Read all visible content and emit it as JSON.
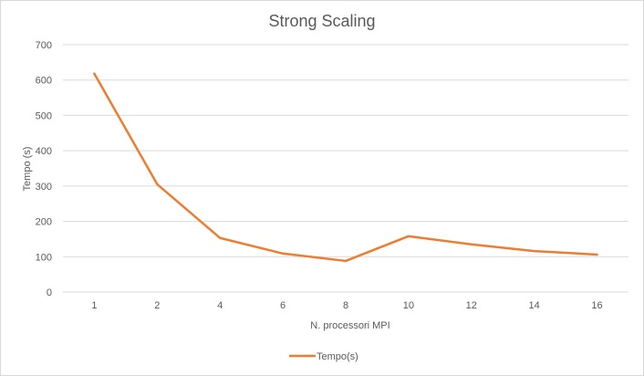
{
  "chart_data": {
    "type": "line",
    "title": "Strong Scaling",
    "xlabel": "N. processori MPI",
    "ylabel": "Tempo (s)",
    "categories": [
      "1",
      "2",
      "4",
      "6",
      "8",
      "10",
      "12",
      "14",
      "16"
    ],
    "series": [
      {
        "name": "Tempo(s)",
        "color": "#ed7d31",
        "values": [
          618,
          305,
          153,
          109,
          88,
          158,
          135,
          116,
          106
        ]
      }
    ],
    "ylim": [
      0,
      700
    ],
    "yticks": [
      "0",
      "100",
      "200",
      "300",
      "400",
      "500",
      "600",
      "700"
    ],
    "grid": true,
    "legend_position": "bottom"
  }
}
